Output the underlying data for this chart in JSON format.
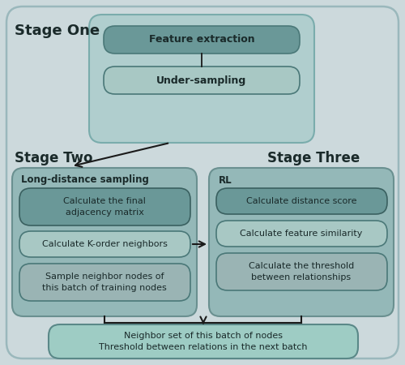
{
  "bg_color": "#ccd9dc",
  "outer_border": "#9ab8bc",
  "stage_one_bg": "#b0cece",
  "stage_two_bg": "#94b8b8",
  "stage_three_bg": "#94b8b8",
  "dark_pill": "#6a9898",
  "light_pill": "#a8c8c4",
  "bottom_pill": "#9eccc4",
  "stage_one_label": "Stage One",
  "stage_two_label": "Stage Two",
  "stage_three_label": "Stage Three",
  "feature_extraction": "Feature extraction",
  "under_sampling": "Under-sampling",
  "long_distance_sampling": "Long-distance sampling",
  "rl_label": "RL",
  "box1_text": "Calculate the final\nadjacency matrix",
  "box2_text": "Calculate K-order neighbors",
  "box3_text": "Sample neighbor nodes of\nthis batch of training nodes",
  "rl_box1_text": "Calculate distance score",
  "rl_box2_text": "Calculate feature similarity",
  "rl_box3_text": "Calculate the threshold\nbetween relationships",
  "bottom_text": "Neighbor set of this batch of nodes\nThreshold between relations in the next batch",
  "text_dark": "#1a2a2a",
  "text_light": "#ddeee8",
  "arrow_color": "#1a1a1a"
}
